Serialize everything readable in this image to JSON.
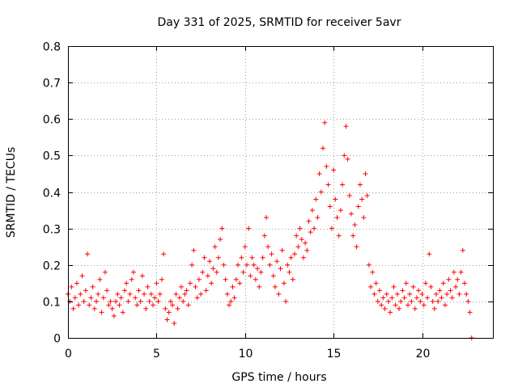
{
  "chart_data": {
    "type": "scatter",
    "title": "Day 331 of 2025, SRMTID for receiver 5avr",
    "xlabel": "GPS time / hours",
    "ylabel": "SRMTID / TECUs",
    "xlim": [
      0,
      24
    ],
    "ylim": [
      0,
      0.8
    ],
    "xticks": [
      0,
      5,
      10,
      15,
      20
    ],
    "yticks": [
      0,
      0.1,
      0.2,
      0.3,
      0.4,
      0.5,
      0.6,
      0.7,
      0.8
    ],
    "xtick_labels": [
      "0",
      "5",
      "10",
      "15",
      "20"
    ],
    "ytick_labels": [
      "0",
      "0.1",
      "0.2",
      "0.3",
      "0.4",
      "0.5",
      "0.6",
      "0.7",
      "0.8"
    ],
    "grid": true,
    "marker": "+",
    "color": "#ff0000",
    "series": [
      {
        "name": "SRMTID",
        "points": [
          [
            0.0,
            0.12
          ],
          [
            0.1,
            0.1
          ],
          [
            0.2,
            0.14
          ],
          [
            0.3,
            0.08
          ],
          [
            0.4,
            0.11
          ],
          [
            0.5,
            0.15
          ],
          [
            0.6,
            0.09
          ],
          [
            0.7,
            0.12
          ],
          [
            0.8,
            0.17
          ],
          [
            0.9,
            0.1
          ],
          [
            1.0,
            0.13
          ],
          [
            1.1,
            0.23
          ],
          [
            1.2,
            0.09
          ],
          [
            1.3,
            0.11
          ],
          [
            1.4,
            0.14
          ],
          [
            1.5,
            0.08
          ],
          [
            1.6,
            0.1
          ],
          [
            1.7,
            0.12
          ],
          [
            1.8,
            0.16
          ],
          [
            1.9,
            0.07
          ],
          [
            2.0,
            0.11
          ],
          [
            2.1,
            0.18
          ],
          [
            2.2,
            0.13
          ],
          [
            2.3,
            0.09
          ],
          [
            2.4,
            0.1
          ],
          [
            2.5,
            0.08
          ],
          [
            2.6,
            0.06
          ],
          [
            2.7,
            0.1
          ],
          [
            2.8,
            0.12
          ],
          [
            2.9,
            0.09
          ],
          [
            3.0,
            0.11
          ],
          [
            3.1,
            0.07
          ],
          [
            3.2,
            0.13
          ],
          [
            3.3,
            0.15
          ],
          [
            3.4,
            0.1
          ],
          [
            3.5,
            0.12
          ],
          [
            3.6,
            0.16
          ],
          [
            3.7,
            0.18
          ],
          [
            3.8,
            0.11
          ],
          [
            3.9,
            0.09
          ],
          [
            4.0,
            0.13
          ],
          [
            4.1,
            0.1
          ],
          [
            4.2,
            0.17
          ],
          [
            4.3,
            0.12
          ],
          [
            4.4,
            0.08
          ],
          [
            4.5,
            0.14
          ],
          [
            4.6,
            0.1
          ],
          [
            4.7,
            0.12
          ],
          [
            4.8,
            0.09
          ],
          [
            4.9,
            0.11
          ],
          [
            5.0,
            0.15
          ],
          [
            5.1,
            0.1
          ],
          [
            5.2,
            0.12
          ],
          [
            5.3,
            0.16
          ],
          [
            5.4,
            0.23
          ],
          [
            5.5,
            0.08
          ],
          [
            5.6,
            0.05
          ],
          [
            5.7,
            0.07
          ],
          [
            5.8,
            0.1
          ],
          [
            5.9,
            0.09
          ],
          [
            6.0,
            0.04
          ],
          [
            6.1,
            0.12
          ],
          [
            6.2,
            0.08
          ],
          [
            6.3,
            0.11
          ],
          [
            6.4,
            0.14
          ],
          [
            6.5,
            0.1
          ],
          [
            6.6,
            0.12
          ],
          [
            6.7,
            0.13
          ],
          [
            6.8,
            0.09
          ],
          [
            6.9,
            0.15
          ],
          [
            7.0,
            0.2
          ],
          [
            7.1,
            0.24
          ],
          [
            7.2,
            0.14
          ],
          [
            7.3,
            0.11
          ],
          [
            7.4,
            0.16
          ],
          [
            7.5,
            0.12
          ],
          [
            7.6,
            0.18
          ],
          [
            7.7,
            0.22
          ],
          [
            7.8,
            0.13
          ],
          [
            7.9,
            0.17
          ],
          [
            8.0,
            0.21
          ],
          [
            8.1,
            0.15
          ],
          [
            8.2,
            0.19
          ],
          [
            8.3,
            0.25
          ],
          [
            8.4,
            0.18
          ],
          [
            8.5,
            0.22
          ],
          [
            8.6,
            0.27
          ],
          [
            8.7,
            0.3
          ],
          [
            8.8,
            0.2
          ],
          [
            8.9,
            0.16
          ],
          [
            9.0,
            0.12
          ],
          [
            9.1,
            0.09
          ],
          [
            9.2,
            0.1
          ],
          [
            9.3,
            0.14
          ],
          [
            9.4,
            0.11
          ],
          [
            9.5,
            0.16
          ],
          [
            9.6,
            0.2
          ],
          [
            9.7,
            0.15
          ],
          [
            9.8,
            0.22
          ],
          [
            9.9,
            0.18
          ],
          [
            10.0,
            0.25
          ],
          [
            10.1,
            0.2
          ],
          [
            10.2,
            0.3
          ],
          [
            10.3,
            0.17
          ],
          [
            10.4,
            0.22
          ],
          [
            10.5,
            0.2
          ],
          [
            10.6,
            0.16
          ],
          [
            10.7,
            0.19
          ],
          [
            10.8,
            0.14
          ],
          [
            10.9,
            0.18
          ],
          [
            11.0,
            0.22
          ],
          [
            11.1,
            0.28
          ],
          [
            11.2,
            0.33
          ],
          [
            11.3,
            0.25
          ],
          [
            11.4,
            0.2
          ],
          [
            11.5,
            0.23
          ],
          [
            11.6,
            0.17
          ],
          [
            11.7,
            0.14
          ],
          [
            11.8,
            0.21
          ],
          [
            11.9,
            0.12
          ],
          [
            12.0,
            0.19
          ],
          [
            12.1,
            0.24
          ],
          [
            12.2,
            0.15
          ],
          [
            12.3,
            0.1
          ],
          [
            12.4,
            0.2
          ],
          [
            12.5,
            0.18
          ],
          [
            12.6,
            0.22
          ],
          [
            12.7,
            0.16
          ],
          [
            12.8,
            0.23
          ],
          [
            12.9,
            0.28
          ],
          [
            13.0,
            0.25
          ],
          [
            13.1,
            0.3
          ],
          [
            13.2,
            0.27
          ],
          [
            13.3,
            0.22
          ],
          [
            13.4,
            0.26
          ],
          [
            13.5,
            0.24
          ],
          [
            13.6,
            0.32
          ],
          [
            13.7,
            0.29
          ],
          [
            13.8,
            0.35
          ],
          [
            13.9,
            0.3
          ],
          [
            14.0,
            0.38
          ],
          [
            14.1,
            0.33
          ],
          [
            14.2,
            0.45
          ],
          [
            14.3,
            0.4
          ],
          [
            14.4,
            0.52
          ],
          [
            14.5,
            0.59
          ],
          [
            14.6,
            0.47
          ],
          [
            14.7,
            0.42
          ],
          [
            14.8,
            0.36
          ],
          [
            14.9,
            0.3
          ],
          [
            15.0,
            0.46
          ],
          [
            15.1,
            0.38
          ],
          [
            15.2,
            0.33
          ],
          [
            15.3,
            0.28
          ],
          [
            15.4,
            0.35
          ],
          [
            15.5,
            0.42
          ],
          [
            15.6,
            0.5
          ],
          [
            15.7,
            0.58
          ],
          [
            15.8,
            0.49
          ],
          [
            15.9,
            0.39
          ],
          [
            16.0,
            0.34
          ],
          [
            16.1,
            0.28
          ],
          [
            16.2,
            0.31
          ],
          [
            16.3,
            0.25
          ],
          [
            16.4,
            0.36
          ],
          [
            16.5,
            0.42
          ],
          [
            16.6,
            0.38
          ],
          [
            16.7,
            0.33
          ],
          [
            16.8,
            0.45
          ],
          [
            16.9,
            0.39
          ],
          [
            17.0,
            0.2
          ],
          [
            17.1,
            0.14
          ],
          [
            17.2,
            0.18
          ],
          [
            17.3,
            0.12
          ],
          [
            17.4,
            0.15
          ],
          [
            17.5,
            0.1
          ],
          [
            17.6,
            0.13
          ],
          [
            17.7,
            0.09
          ],
          [
            17.8,
            0.11
          ],
          [
            17.9,
            0.08
          ],
          [
            18.0,
            0.12
          ],
          [
            18.1,
            0.1
          ],
          [
            18.2,
            0.07
          ],
          [
            18.3,
            0.11
          ],
          [
            18.4,
            0.14
          ],
          [
            18.5,
            0.09
          ],
          [
            18.6,
            0.12
          ],
          [
            18.7,
            0.08
          ],
          [
            18.8,
            0.1
          ],
          [
            18.9,
            0.13
          ],
          [
            19.0,
            0.11
          ],
          [
            19.1,
            0.15
          ],
          [
            19.2,
            0.09
          ],
          [
            19.3,
            0.12
          ],
          [
            19.4,
            0.1
          ],
          [
            19.5,
            0.14
          ],
          [
            19.6,
            0.08
          ],
          [
            19.7,
            0.11
          ],
          [
            19.8,
            0.13
          ],
          [
            19.9,
            0.1
          ],
          [
            20.0,
            0.12
          ],
          [
            20.1,
            0.09
          ],
          [
            20.2,
            0.15
          ],
          [
            20.3,
            0.11
          ],
          [
            20.4,
            0.23
          ],
          [
            20.5,
            0.14
          ],
          [
            20.6,
            0.1
          ],
          [
            20.7,
            0.08
          ],
          [
            20.8,
            0.12
          ],
          [
            20.9,
            0.1
          ],
          [
            21.0,
            0.13
          ],
          [
            21.1,
            0.11
          ],
          [
            21.2,
            0.15
          ],
          [
            21.3,
            0.09
          ],
          [
            21.4,
            0.12
          ],
          [
            21.5,
            0.16
          ],
          [
            21.6,
            0.13
          ],
          [
            21.7,
            0.11
          ],
          [
            21.8,
            0.18
          ],
          [
            21.9,
            0.14
          ],
          [
            22.0,
            0.16
          ],
          [
            22.1,
            0.12
          ],
          [
            22.2,
            0.18
          ],
          [
            22.3,
            0.24
          ],
          [
            22.4,
            0.15
          ],
          [
            22.5,
            0.12
          ],
          [
            22.6,
            0.1
          ],
          [
            22.7,
            0.07
          ],
          [
            22.8,
            0.0
          ]
        ]
      }
    ]
  }
}
